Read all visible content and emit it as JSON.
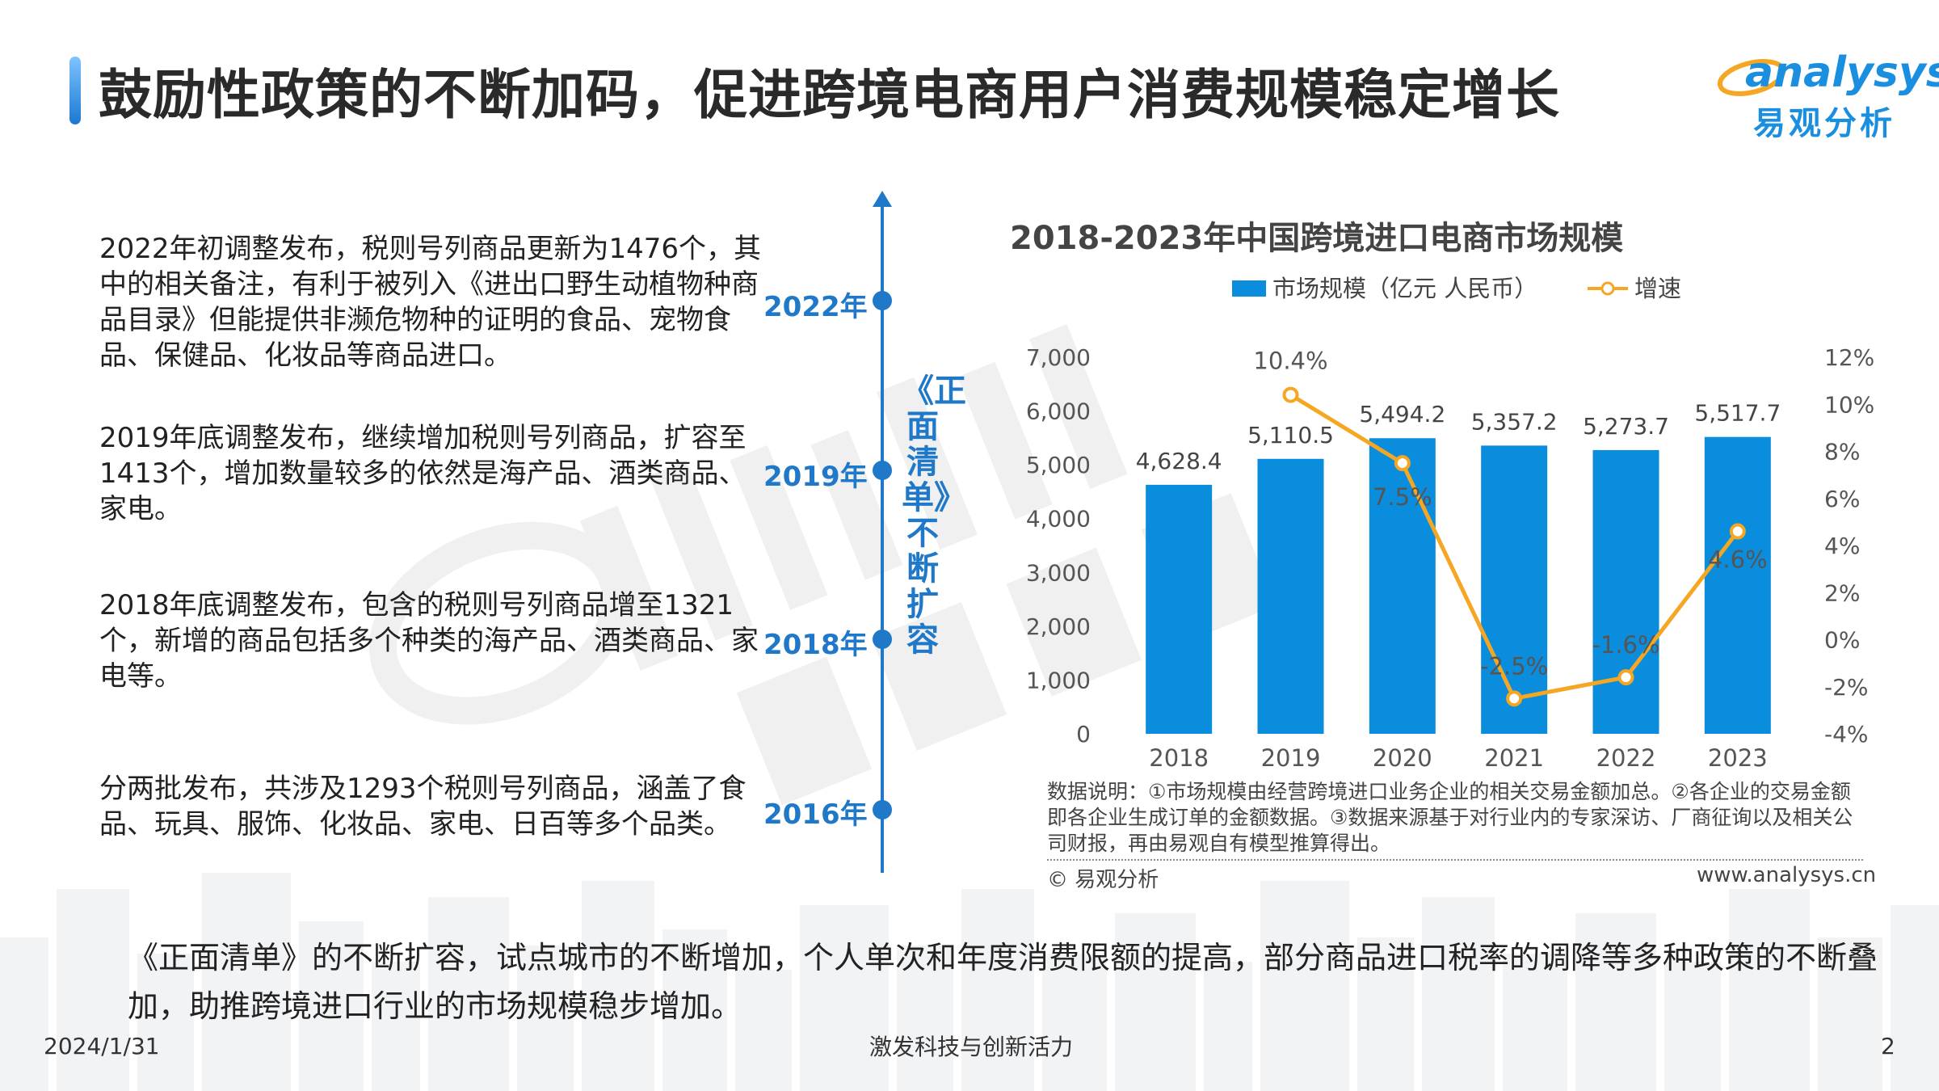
{
  "header": {
    "title": "鼓励性政策的不断加码，促进跨境电商用户消费规模稳定增长",
    "logo_text": "analysys",
    "logo_sub": "易观分析"
  },
  "timeline": {
    "vertical_label": "《正面清单》不断扩容",
    "items": [
      {
        "year": "2022年",
        "text": "2022年初调整发布，税则号列商品更新为1476个，其中的相关备注，有利于被列入《进出口野生动植物种商品目录》但能提供非濒危物种的证明的食品、宠物食品、保健品、化妆品等商品进口。"
      },
      {
        "year": "2019年",
        "text": "2019年底调整发布，继续增加税则号列商品，扩容至1413个，增加数量较多的依然是海产品、酒类商品、家电。"
      },
      {
        "year": "2018年",
        "text": "2018年底调整发布，包含的税则号列商品增至1321个，新增的商品包括多个种类的海产品、酒类商品、家电等。"
      },
      {
        "year": "2016年",
        "text": "分两批发布，共涉及1293个税则号列商品，涵盖了食品、玩具、服饰、化妆品、家电、日百等多个品类。"
      }
    ]
  },
  "chart_data": {
    "type": "bar",
    "title": "2018-2023年中国跨境进口电商市场规模",
    "categories": [
      "2018",
      "2019",
      "2020",
      "2021",
      "2022",
      "2023"
    ],
    "series": [
      {
        "name": "市场规模（亿元 人民币）",
        "type": "bar",
        "axis": "left",
        "values": [
          4628.4,
          5110.5,
          5494.2,
          5357.2,
          5273.7,
          5517.7
        ],
        "labels": [
          "4,628.4",
          "5,110.5",
          "5,494.2",
          "5,357.2",
          "5,273.7",
          "5,517.7"
        ]
      },
      {
        "name": "增速",
        "type": "line",
        "axis": "right",
        "values": [
          null,
          10.4,
          7.5,
          -2.5,
          -1.6,
          4.6
        ],
        "labels": [
          "",
          "10.4%",
          "7.5%",
          "-2.5%",
          "-1.6%",
          "4.6%"
        ]
      }
    ],
    "left_axis": {
      "ylim": [
        0,
        7000
      ],
      "ticks": [
        "0",
        "1,000",
        "2,000",
        "3,000",
        "4,000",
        "5,000",
        "6,000",
        "7,000"
      ]
    },
    "right_axis": {
      "ylim": [
        -4,
        12
      ],
      "ticks": [
        "-4%",
        "-2%",
        "0%",
        "2%",
        "4%",
        "6%",
        "8%",
        "10%",
        "12%"
      ]
    },
    "legend_position": "top",
    "grid": false,
    "colors": {
      "bar": "#0a8ddc",
      "line": "#f5a623"
    }
  },
  "chart_note": "数据说明：①市场规模由经营跨境进口业务企业的相关交易金额加总。②各企业的交易金额即各企业生成订单的金额数据。③数据来源基于对行业内的专家深访、厂商征询以及相关公司财报，再由易观自有模型推算得出。",
  "source": "© 易观分析",
  "site": "www.analysys.cn",
  "conclusion": "《正面清单》的不断扩容，试点城市的不断增加，个人单次和年度消费限额的提高，部分商品进口税率的调降等多种政策的不断叠加，助推跨境进口行业的市场规模稳步增加。",
  "footer": {
    "date": "2024/1/31",
    "center": "激发科技与创新活力",
    "page": "2"
  },
  "colors": {
    "accent": "#1f78c8",
    "bar": "#0a8ddc",
    "line": "#f5a623"
  }
}
